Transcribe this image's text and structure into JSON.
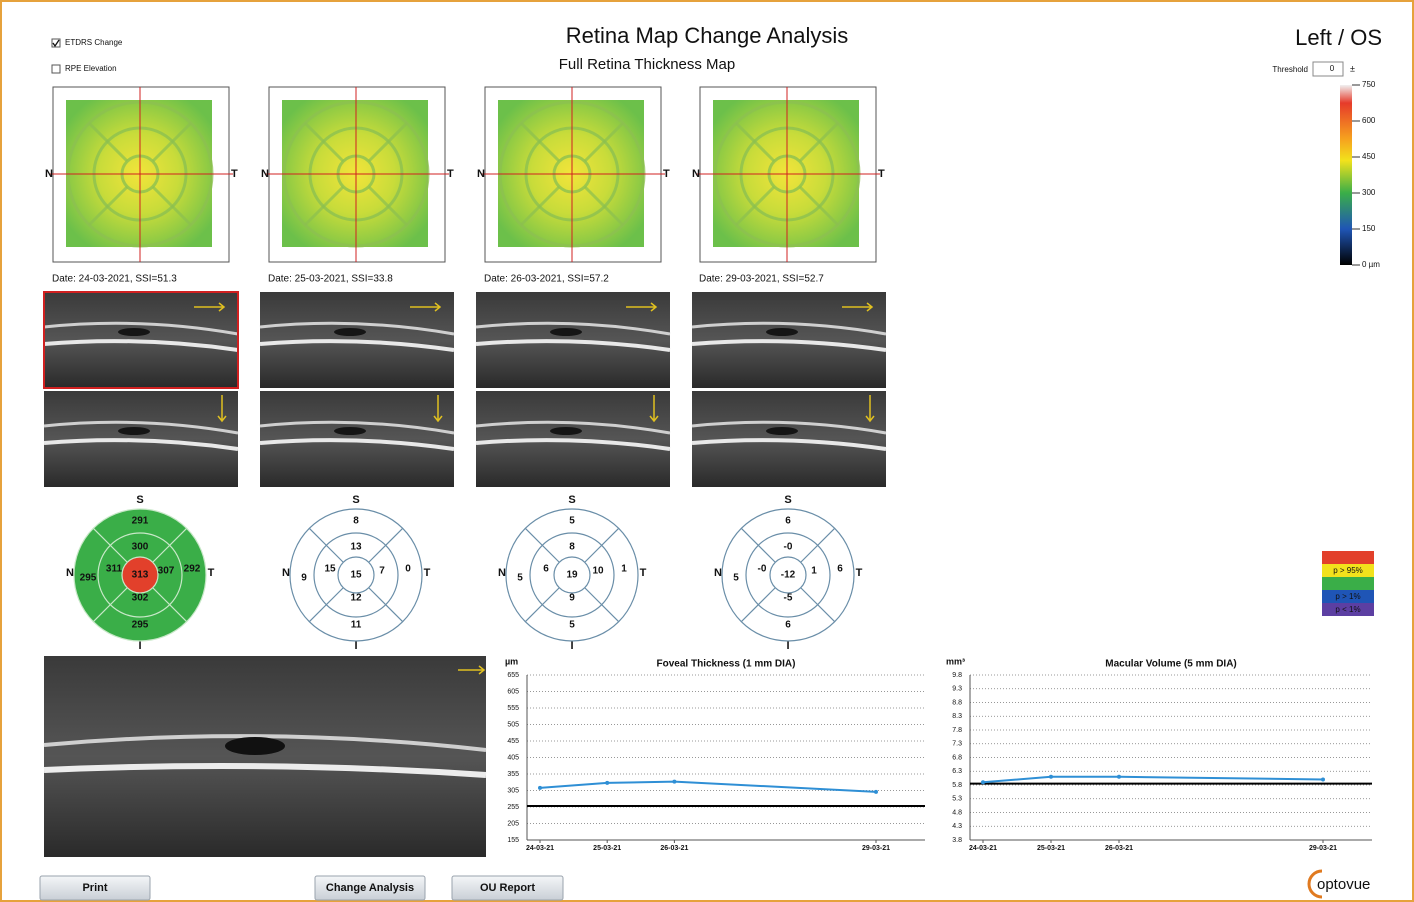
{
  "header": {
    "checkboxes": [
      {
        "label": "ETDRS Change",
        "checked": true
      },
      {
        "label": "RPE Elevation",
        "checked": false
      }
    ],
    "title": "Retina Map Change Analysis",
    "subtitle": "Full Retina Thickness Map",
    "eye": "Left / OS",
    "threshold_label": "Threshold",
    "threshold_value": 0
  },
  "colorbar": {
    "ylim": [
      0,
      750
    ],
    "yticks": [
      750,
      600,
      450,
      300,
      150,
      {
        "value": 0,
        "label": "0 µm"
      }
    ]
  },
  "directions": {
    "superior": "S",
    "inferior": "I",
    "nasal": "N",
    "temporal": "T"
  },
  "scans": [
    {
      "label": "Date: 24-03-2021, SSI=51.3"
    },
    {
      "label": "Date: 25-03-2021, SSI=33.8"
    },
    {
      "label": "Date: 26-03-2021, SSI=57.2"
    },
    {
      "label": "Date: 29-03-2021, SSI=52.7"
    }
  ],
  "etdrs_grids": [
    {
      "center": 313,
      "inner": {
        "S": 300,
        "T": 307,
        "I": 302,
        "N": 311
      },
      "outer": {
        "S": 291,
        "T": 292,
        "I": 295,
        "N": 295
      },
      "fill": "#3aae48",
      "center_fill": "#e2402b"
    },
    {
      "center": 15,
      "inner": {
        "S": 13,
        "T": 7,
        "I": 12,
        "N": 15
      },
      "outer": {
        "S": 8,
        "T": 0,
        "I": 11,
        "N": 9
      }
    },
    {
      "center": 19,
      "inner": {
        "S": 8,
        "T": 10,
        "I": 9,
        "N": 6
      },
      "outer": {
        "S": 5,
        "T": 1,
        "I": 5,
        "N": 5
      }
    },
    {
      "center": -12,
      "inner": {
        "S": "-0",
        "T": 1,
        "I": -5,
        "N": "-0"
      },
      "outer": {
        "S": 6,
        "T": 6,
        "I": 6,
        "N": 5
      }
    }
  ],
  "significance_legend": [
    {
      "color": "#e2402b"
    },
    {
      "color": "#f2e21c",
      "label": "p > 95%"
    },
    {
      "color": "#3aae48"
    },
    {
      "color": "#1f55b6",
      "label": "p > 1%"
    },
    {
      "color": "#5c3fa2",
      "label": "p < 1%"
    }
  ],
  "trend_charts": [
    {
      "type": "line",
      "title": "Foveal Thickness (1 mm DIA)",
      "y_label": "µm",
      "x": [
        "24-03-21",
        "25-03-21",
        "26-03-21",
        "29-03-21"
      ],
      "values": [
        313,
        328,
        332,
        301
      ],
      "color": "#2f8fd5",
      "reference": 258,
      "ylim": [
        155,
        655
      ],
      "yticks": [
        155,
        205,
        255,
        305,
        355,
        405,
        455,
        505,
        555,
        605,
        655
      ],
      "grid": true
    },
    {
      "type": "line",
      "title": "Macular Volume (5 mm DIA)",
      "y_label": "mm³",
      "x": [
        "24-03-21",
        "25-03-21",
        "26-03-21",
        "29-03-21"
      ],
      "values": [
        5.9,
        6.1,
        6.1,
        6.0
      ],
      "color": "#2f8fd5",
      "reference": 5.85,
      "ylim": [
        3.8,
        9.8
      ],
      "yticks": [
        3.8,
        4.3,
        4.8,
        5.3,
        5.8,
        6.3,
        6.8,
        7.3,
        7.8,
        8.3,
        8.8,
        9.3,
        9.8
      ],
      "grid": true
    }
  ],
  "buttons": [
    "Print",
    "Change Analysis",
    "OU Report"
  ],
  "logo": "optovue"
}
